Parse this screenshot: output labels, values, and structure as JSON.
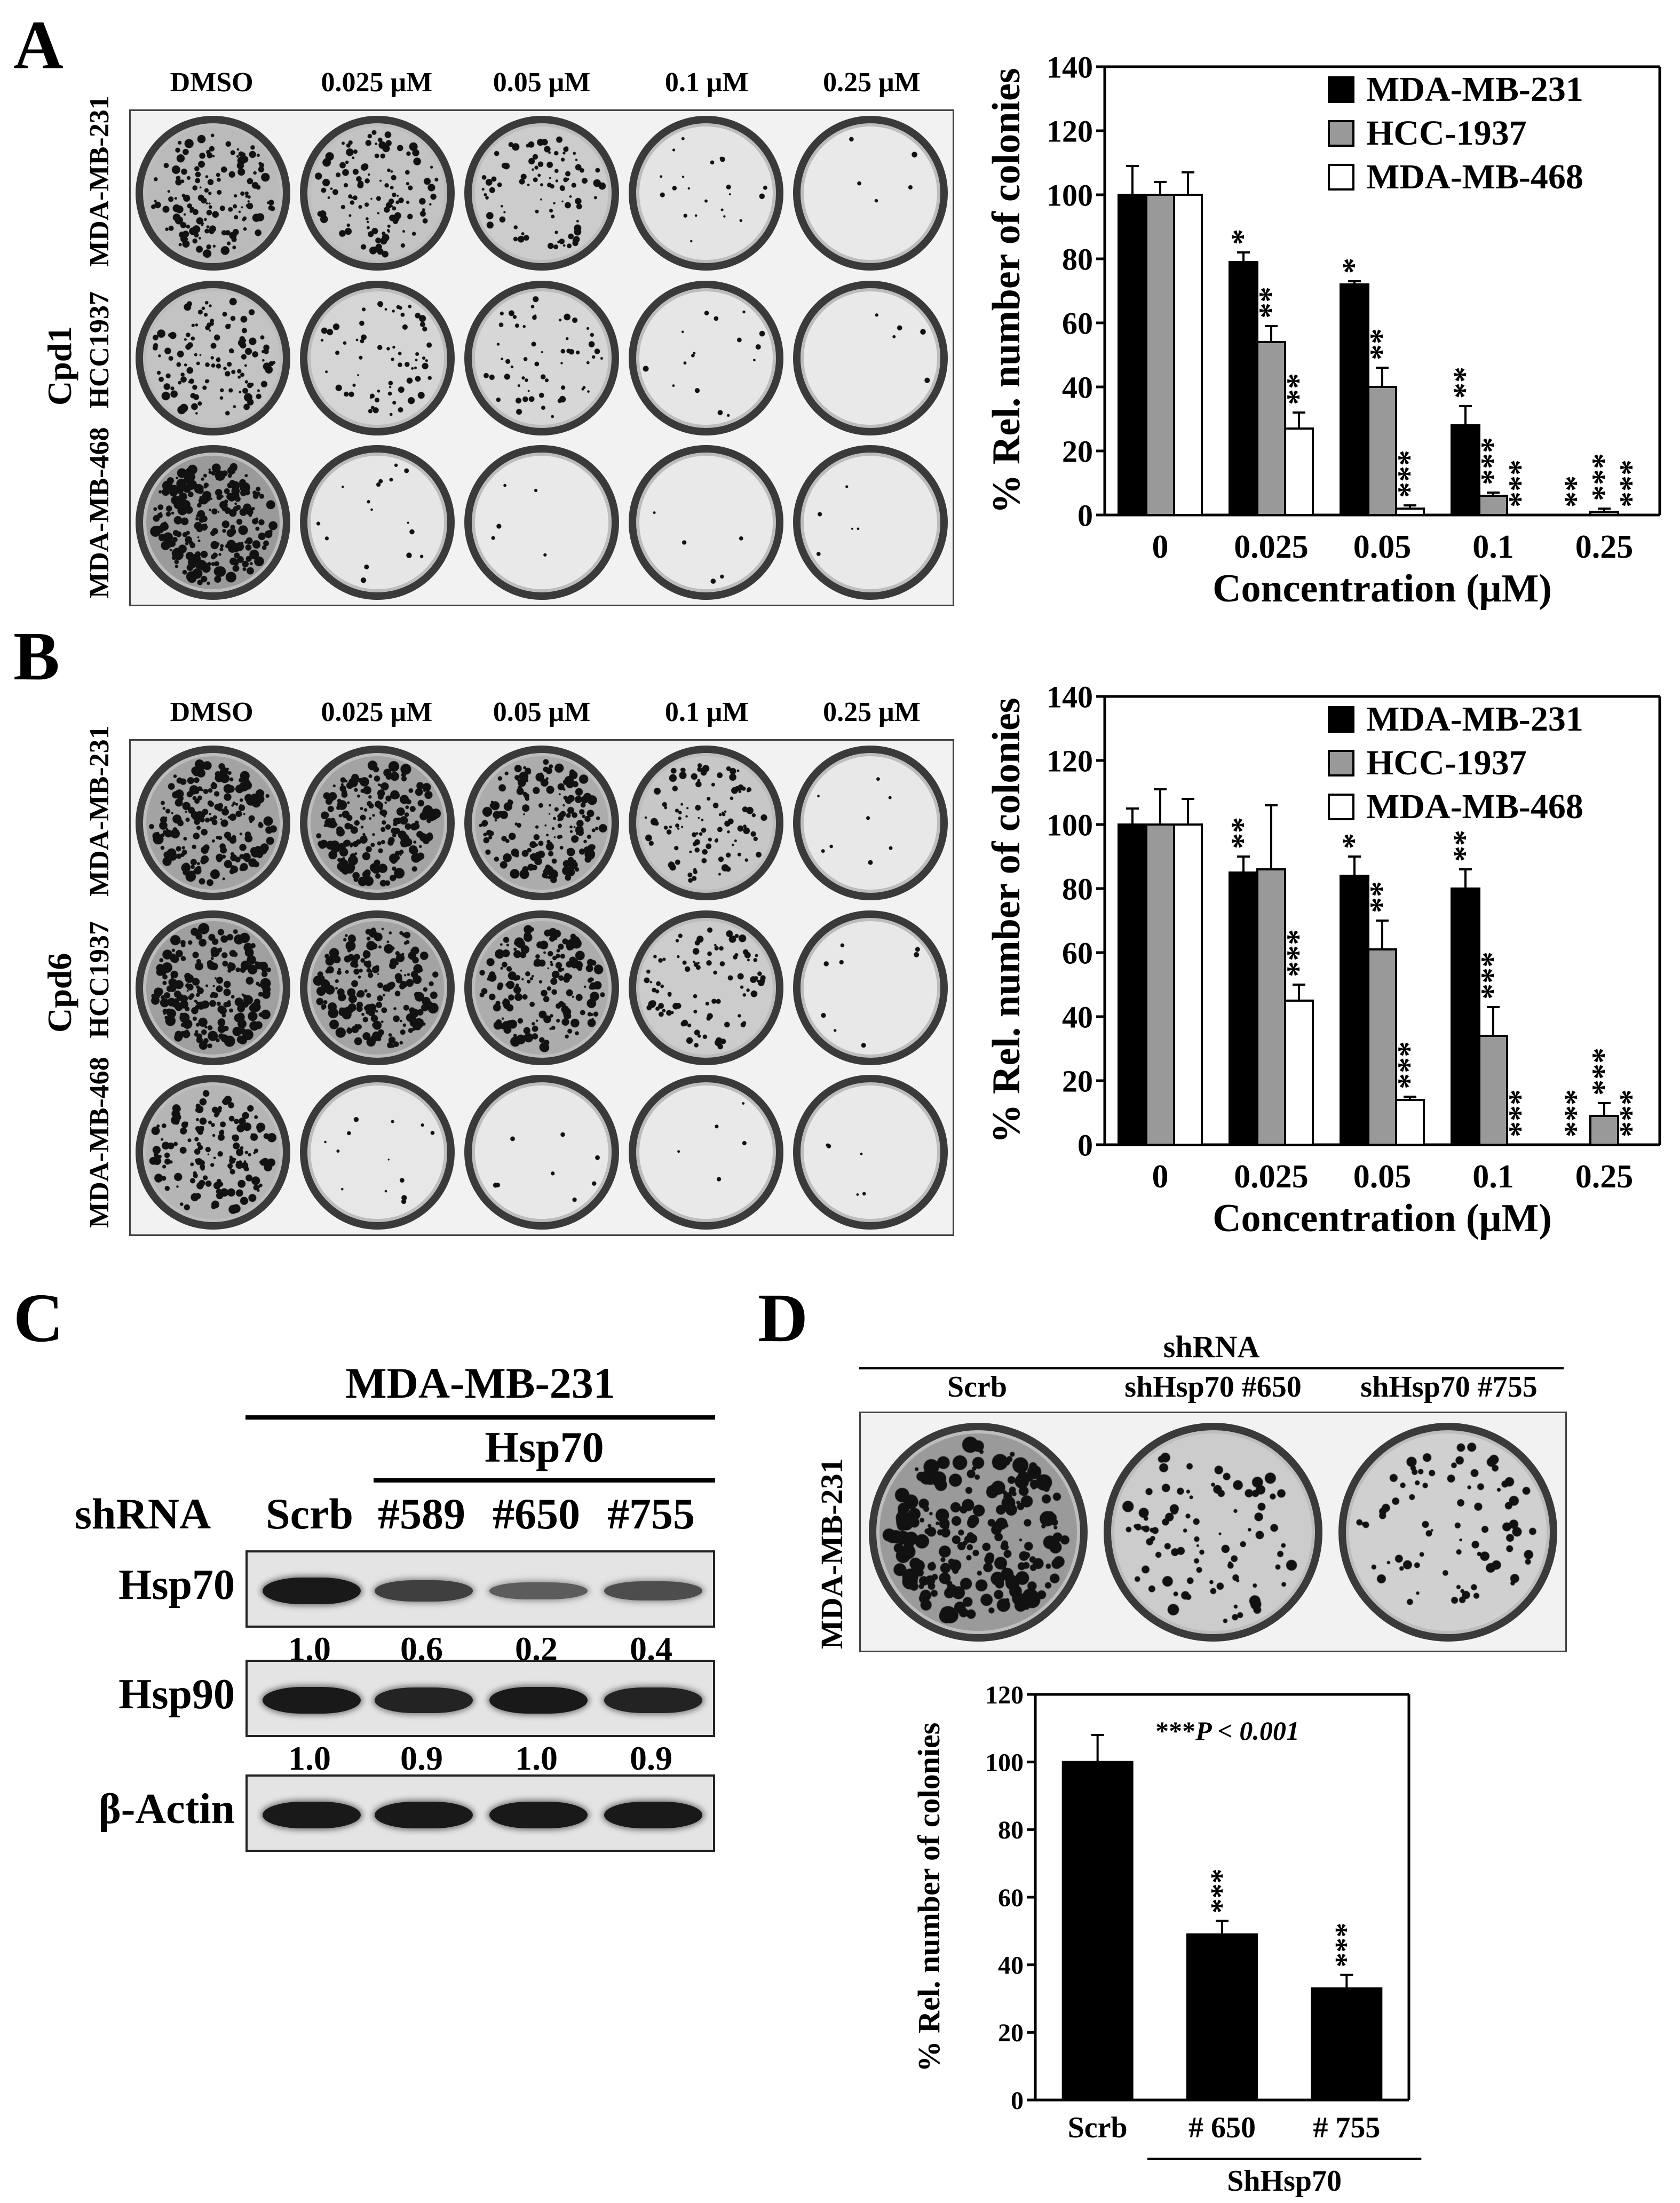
{
  "panels": {
    "A": {
      "label": "A",
      "compound": "Cpd1",
      "columns": [
        "DMSO",
        "0.025 μM",
        "0.05 μM",
        "0.1 μM",
        "0.25 μM"
      ],
      "rows": [
        "MDA-MB-231",
        "HCC1937",
        "MDA-MB-468"
      ],
      "colony_density": [
        [
          0.55,
          0.45,
          0.35,
          0.08,
          0.02
        ],
        [
          0.45,
          0.25,
          0.22,
          0.06,
          0.02
        ],
        [
          0.9,
          0.06,
          0.02,
          0.02,
          0.02
        ]
      ]
    },
    "B": {
      "label": "B",
      "compound": "Cpd6",
      "columns": [
        "DMSO",
        "0.025 μM",
        "0.05 μM",
        "0.1 μM",
        "0.25 μM"
      ],
      "rows": [
        "MDA-MB-231",
        "HCC1937",
        "MDA-MB-468"
      ],
      "colony_density": [
        [
          0.8,
          0.8,
          0.7,
          0.4,
          0.03
        ],
        [
          0.85,
          0.8,
          0.7,
          0.35,
          0.03
        ],
        [
          0.6,
          0.05,
          0.03,
          0.02,
          0.02
        ]
      ]
    },
    "C": {
      "label": "C",
      "cell_line": "MDA-MB-231",
      "group": "Hsp70",
      "row_header": "shRNA",
      "lanes": [
        "Scrb",
        "#589",
        "#650",
        "#755"
      ],
      "blots": [
        {
          "name": "Hsp70",
          "quant": [
            "1.0",
            "0.6",
            "0.2",
            "0.4"
          ],
          "intensity": [
            1.0,
            0.6,
            0.3,
            0.45
          ]
        },
        {
          "name": "Hsp90",
          "quant": [
            "1.0",
            "0.9",
            "1.0",
            "0.9"
          ],
          "intensity": [
            1.0,
            0.9,
            1.0,
            0.9
          ]
        },
        {
          "name": "β-Actin",
          "quant": [],
          "intensity": [
            1.0,
            1.0,
            1.0,
            1.0
          ]
        }
      ]
    },
    "D": {
      "label": "D",
      "header": "shRNA",
      "columns": [
        "Scrb",
        "shHsp70 #650",
        "shHsp70 #755"
      ],
      "row_label": "MDA-MB-231",
      "colony_density": [
        0.9,
        0.35,
        0.3
      ],
      "stat_note_stars": "***",
      "stat_note_text": "P < 0.001"
    }
  },
  "chart_data": [
    {
      "id": "A-chart",
      "type": "bar",
      "categories": [
        "0",
        "0.025",
        "0.05",
        "0.1",
        "0.25"
      ],
      "xlabel": "Concentration (μM)",
      "ylabel": "% Rel. number of colonies",
      "ylim": [
        0,
        140
      ],
      "yticks": [
        0,
        20,
        40,
        60,
        80,
        100,
        120,
        140
      ],
      "legend_position": "top-right",
      "series": [
        {
          "name": "MDA-MB-231",
          "color": "#000000",
          "values": [
            100,
            79,
            72,
            28,
            0
          ],
          "errors": [
            9,
            3,
            1,
            6,
            0
          ],
          "stars": [
            "",
            "*",
            "*",
            "**",
            "**"
          ]
        },
        {
          "name": "HCC-1937",
          "color": "#999999",
          "values": [
            100,
            54,
            40,
            6,
            1
          ],
          "errors": [
            4,
            5,
            6,
            1,
            1
          ],
          "stars": [
            "",
            "**",
            "**",
            "***",
            "***"
          ]
        },
        {
          "name": "MDA-MB-468",
          "color": "#ffffff",
          "values": [
            100,
            27,
            2,
            0,
            0
          ],
          "errors": [
            7,
            5,
            1,
            0,
            0
          ],
          "stars": [
            "",
            "**",
            "***",
            "***",
            "***"
          ]
        }
      ]
    },
    {
      "id": "B-chart",
      "type": "bar",
      "categories": [
        "0",
        "0.025",
        "0.05",
        "0.1",
        "0.25"
      ],
      "xlabel": "Concentration (μM)",
      "ylabel": "% Rel. number of colonies",
      "ylim": [
        0,
        140
      ],
      "yticks": [
        0,
        20,
        40,
        60,
        80,
        100,
        120,
        140
      ],
      "legend_position": "top-right",
      "series": [
        {
          "name": "MDA-MB-231",
          "color": "#000000",
          "values": [
            100,
            85,
            84,
            80,
            0
          ],
          "errors": [
            5,
            5,
            6,
            6,
            0
          ],
          "stars": [
            "",
            "**",
            "*",
            "**",
            "***"
          ]
        },
        {
          "name": "HCC-1937",
          "color": "#999999",
          "values": [
            100,
            86,
            61,
            34,
            9
          ],
          "errors": [
            11,
            20,
            9,
            9,
            4
          ],
          "stars": [
            "",
            "",
            "**",
            "***",
            "***"
          ]
        },
        {
          "name": "MDA-MB-468",
          "color": "#ffffff",
          "values": [
            100,
            45,
            14,
            0,
            0
          ],
          "errors": [
            8,
            5,
            1,
            0,
            0
          ],
          "stars": [
            "",
            "***",
            "***",
            "***",
            "***"
          ]
        }
      ]
    },
    {
      "id": "D-chart",
      "type": "bar",
      "categories": [
        "Scrb",
        "# 650",
        "# 755"
      ],
      "group_label": "ShHsp70",
      "ylabel": "% Rel. number of colonies",
      "ylim": [
        0,
        120
      ],
      "yticks": [
        0,
        20,
        40,
        60,
        80,
        100,
        120
      ],
      "series": [
        {
          "color": "#000000",
          "values": [
            100,
            49,
            33
          ],
          "errors": [
            8,
            4,
            4
          ],
          "stars": [
            "",
            "***",
            "***"
          ]
        }
      ]
    }
  ]
}
